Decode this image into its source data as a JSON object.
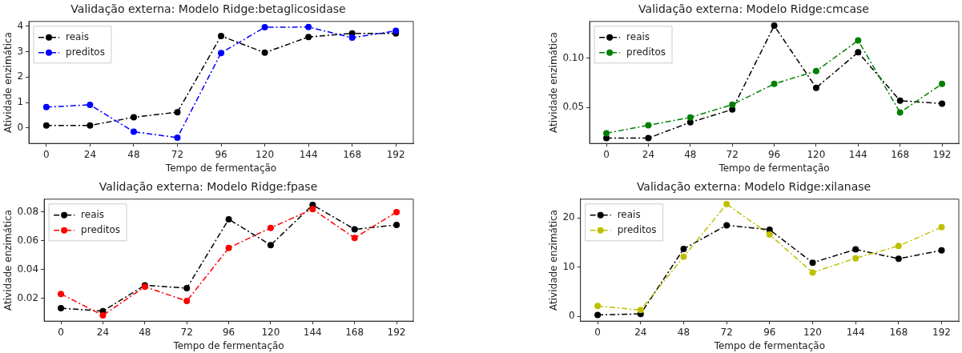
{
  "chart_data": [
    {
      "type": "line",
      "title": "Validação externa: Modelo Ridge:betaglicosidase",
      "xlabel": "Tempo de fermentação",
      "ylabel": "Atividade enzimática",
      "x": [
        0,
        24,
        48,
        72,
        96,
        120,
        144,
        168,
        192
      ],
      "xlim": [
        -9.6,
        201.6
      ],
      "xticks": [
        0,
        24,
        48,
        72,
        96,
        120,
        144,
        168,
        192
      ],
      "ylim": [
        -0.61,
        4.19
      ],
      "yticks": [
        0,
        1,
        2,
        3,
        4
      ],
      "legend": "top left",
      "marker": "circle",
      "line_style": "dashed",
      "series": [
        {
          "name": "reais",
          "color": "#000000",
          "values": [
            0.1,
            0.1,
            0.42,
            0.62,
            3.62,
            2.96,
            3.58,
            3.72,
            3.72
          ]
        },
        {
          "name": "preditos",
          "color": "#0000ff",
          "values": [
            0.82,
            0.91,
            -0.15,
            -0.38,
            2.95,
            3.96,
            3.97,
            3.55,
            3.82
          ]
        }
      ]
    },
    {
      "type": "line",
      "title": "Validação externa: Modelo Ridge:cmcase",
      "xlabel": "Tempo de fermentação",
      "ylabel": "Atividade enzimática",
      "x": [
        0,
        24,
        48,
        72,
        96,
        120,
        144,
        168,
        192
      ],
      "xlim": [
        -9.6,
        201.6
      ],
      "xticks": [
        0,
        24,
        48,
        72,
        96,
        120,
        144,
        168,
        192
      ],
      "ylim": [
        0.0136,
        0.1373
      ],
      "yticks": [
        0.05,
        {
          "value": 0.1,
          "label": "0.10"
        }
      ],
      "legend": "top left",
      "marker": "circle",
      "line_style": "dashed",
      "series": [
        {
          "name": "reais",
          "color": "#000000",
          "values": [
            0.019,
            0.019,
            0.035,
            0.048,
            0.133,
            0.07,
            0.106,
            0.057,
            0.054
          ]
        },
        {
          "name": "preditos",
          "color": "#008000",
          "values": [
            0.024,
            0.032,
            0.04,
            0.053,
            0.074,
            0.087,
            0.118,
            0.045,
            0.074
          ]
        }
      ]
    },
    {
      "type": "line",
      "title": "Validação externa: Modelo Ridge:fpase",
      "xlabel": "Tempo de fermentação",
      "ylabel": "Atividade enzimática",
      "x": [
        0,
        24,
        48,
        72,
        96,
        120,
        144,
        168,
        192
      ],
      "xlim": [
        -9.6,
        201.6
      ],
      "xticks": [
        0,
        24,
        48,
        72,
        96,
        120,
        144,
        168,
        192
      ],
      "ylim": [
        0.004,
        0.089
      ],
      "yticks": [
        0.02,
        0.04,
        0.06,
        0.08
      ],
      "legend": "top left",
      "marker": "circle",
      "line_style": "dashed",
      "series": [
        {
          "name": "reais",
          "color": "#000000",
          "values": [
            0.013,
            0.011,
            0.029,
            0.027,
            0.075,
            0.057,
            0.085,
            0.068,
            0.071
          ]
        },
        {
          "name": "preditos",
          "color": "#ff0000",
          "values": [
            0.023,
            0.008,
            0.028,
            0.018,
            0.055,
            0.069,
            0.082,
            0.062,
            0.08
          ]
        }
      ]
    },
    {
      "type": "line",
      "title": "Validação externa: Modelo Ridge:xilanase",
      "xlabel": "Tempo de fermentação",
      "ylabel": "Atividade enzimática",
      "x": [
        0,
        24,
        48,
        72,
        96,
        120,
        144,
        168,
        192
      ],
      "xlim": [
        -9.6,
        201.6
      ],
      "xticks": [
        0,
        24,
        48,
        72,
        96,
        120,
        144,
        168,
        192
      ],
      "ylim": [
        -0.97,
        23.8
      ],
      "yticks": [
        0,
        10,
        20
      ],
      "legend": "top left",
      "marker": "circle",
      "line_style": "dashed",
      "series": [
        {
          "name": "reais",
          "color": "#000000",
          "values": [
            0.3,
            0.5,
            13.7,
            18.5,
            17.6,
            10.9,
            13.6,
            11.7,
            13.4
          ]
        },
        {
          "name": "preditos",
          "color": "#bfbf00",
          "values": [
            2.1,
            1.3,
            12.1,
            22.8,
            16.6,
            8.9,
            11.8,
            14.3,
            18.1
          ]
        }
      ]
    }
  ]
}
